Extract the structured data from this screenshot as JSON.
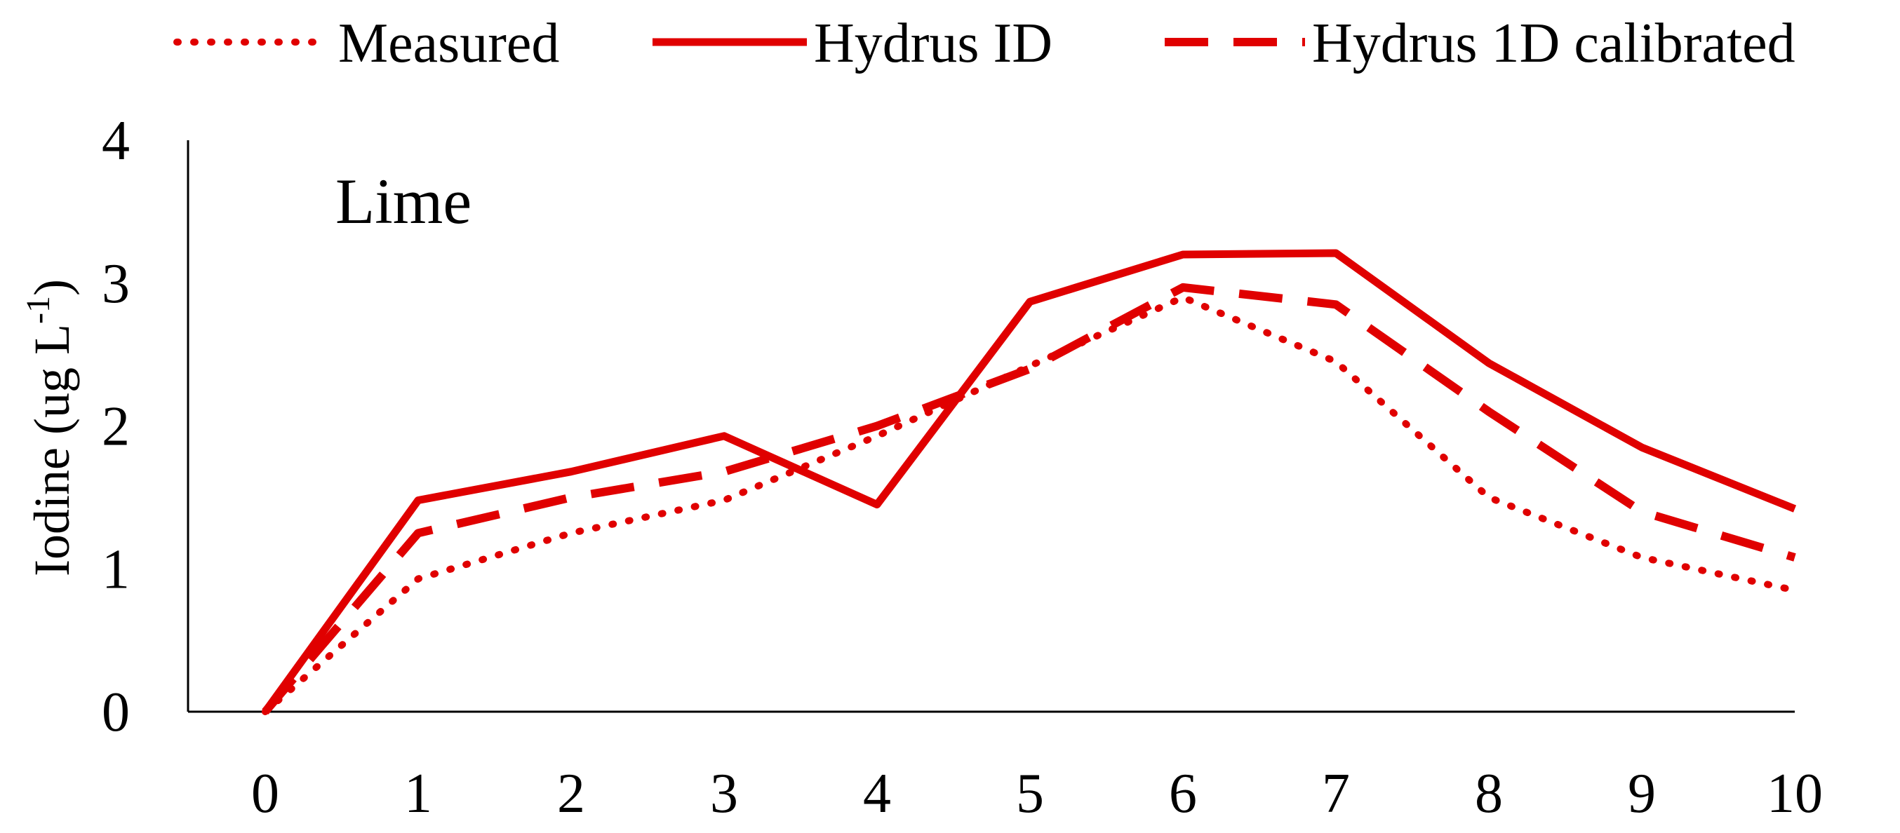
{
  "chart_data": {
    "type": "line",
    "title": "",
    "panel_label": "Lime",
    "xlabel": "",
    "ylabel": {
      "text": "Iodine (ug L",
      "superscript": "-1",
      "close": ")"
    },
    "x": [
      0,
      1,
      2,
      3,
      4,
      5,
      6,
      7,
      8,
      9,
      10
    ],
    "xlim": [
      0,
      10
    ],
    "ylim": [
      0,
      4
    ],
    "x_ticks": [
      "0",
      "1",
      "2",
      "3",
      "4",
      "5",
      "6",
      "7",
      "8",
      "9",
      "10"
    ],
    "y_ticks": [
      "0",
      "1",
      "2",
      "3",
      "4"
    ],
    "grid": false,
    "legend_position": "top",
    "series": [
      {
        "name": "Measured",
        "style": "dotted",
        "color": "#e00000",
        "values": [
          0,
          0.93,
          1.25,
          1.48,
          1.93,
          2.42,
          2.9,
          2.45,
          1.5,
          1.08,
          0.85
        ]
      },
      {
        "name": "Hydrus ID",
        "style": "solid",
        "color": "#e00000",
        "values": [
          0,
          1.48,
          1.68,
          1.93,
          1.45,
          2.87,
          3.2,
          3.21,
          2.44,
          1.85,
          1.42
        ]
      },
      {
        "name": "Hydrus 1D calibrated",
        "style": "dashed",
        "color": "#e00000",
        "values": [
          0,
          1.25,
          1.5,
          1.68,
          2.0,
          2.4,
          2.97,
          2.85,
          2.1,
          1.4,
          1.08
        ]
      }
    ]
  }
}
